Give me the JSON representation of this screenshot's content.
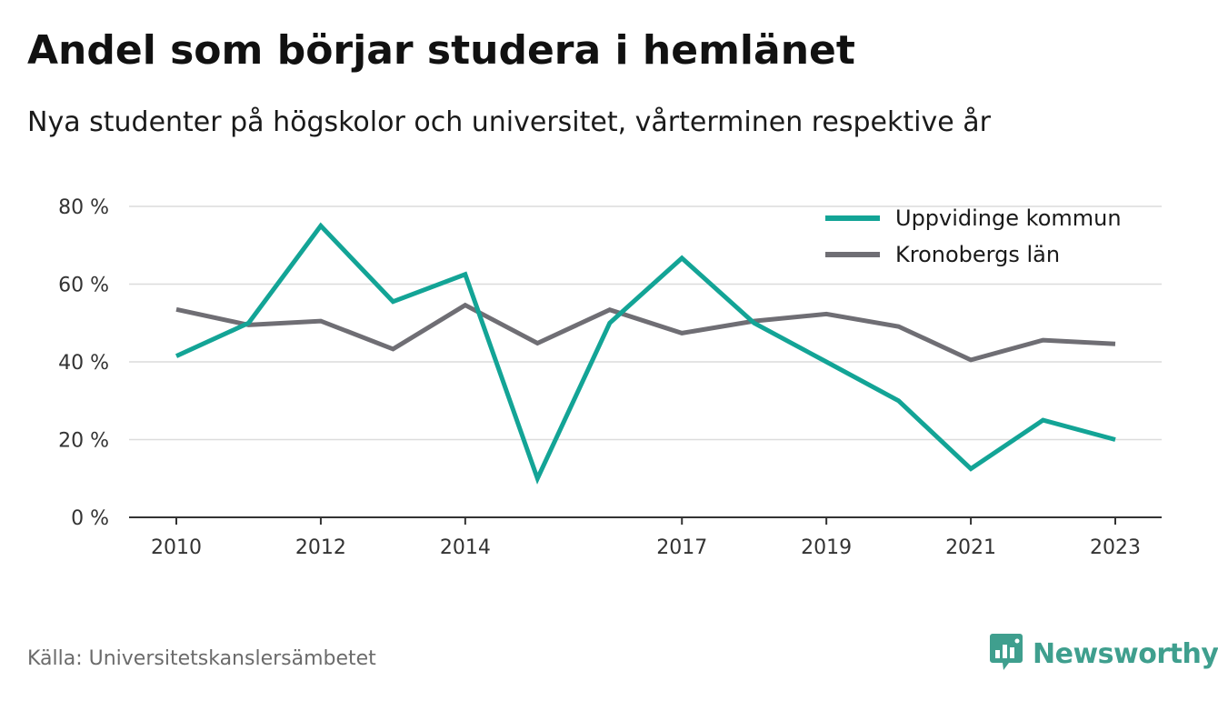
{
  "title": "Andel som börjar studera i hemlänet",
  "subtitle": "Nya studenter på högskolor och universitet, vårterminen respektive år",
  "source": "Källa: Universitetskanslersämbetet",
  "brand": {
    "name": "Newsworthy",
    "icon": "newsworthy-logo-icon",
    "color": "#3f9f8e"
  },
  "chart_data": {
    "type": "line",
    "x": [
      2010,
      2011,
      2012,
      2013,
      2014,
      2015,
      2016,
      2017,
      2018,
      2019,
      2020,
      2021,
      2022,
      2023
    ],
    "x_tick_labels": [
      "2010",
      "2012",
      "2014",
      "2017",
      "2019",
      "2021",
      "2023"
    ],
    "x_tick_values": [
      2010,
      2012,
      2014,
      2017,
      2019,
      2021,
      2023
    ],
    "y_tick_labels": [
      "0 %",
      "20 %",
      "40 %",
      "60 %",
      "80 %"
    ],
    "y_tick_values": [
      0,
      20,
      40,
      60,
      80
    ],
    "ylim": [
      0,
      80
    ],
    "grid": true,
    "legend_position": "top-right",
    "series": [
      {
        "name": "Uppvidinge kommun",
        "color": "#13a496",
        "values": [
          41.5,
          50,
          75,
          55.5,
          62.5,
          10,
          50,
          66.7,
          50,
          40,
          30,
          12.5,
          25,
          20
        ]
      },
      {
        "name": "Kronobergs län",
        "color": "#6f6e74",
        "values": [
          53.5,
          49.5,
          50.5,
          43.3,
          54.6,
          44.8,
          53.4,
          47.4,
          50.5,
          52.3,
          49.1,
          40.5,
          45.6,
          44.6
        ]
      }
    ]
  }
}
